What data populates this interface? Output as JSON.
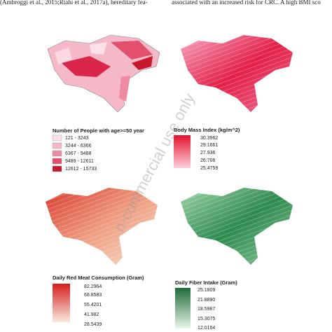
{
  "header": {
    "left": "(Ambroggi et al., 2015;Riahi et al., 2017a), hereditary fea-",
    "right": "associated with an increased risk for CRC. A high BMI sco"
  },
  "watermark": "n-commercial use only",
  "maps": [
    {
      "title": "Number of People with age>=50 year",
      "labels": [
        "121 - 3243",
        "3244 - 6366",
        "6367 - 9488",
        "9489 - 12611",
        "12612 - 15733"
      ]
    },
    {
      "title": "Body Mass Index (kg/m^2)",
      "labels": [
        "30.3962",
        "29.1661",
        "27.936",
        "26.706",
        "25.4759"
      ]
    },
    {
      "title": "Daily Red Meat Consumption (Gram)",
      "labels": [
        "82.2964",
        "68.8583",
        "55.4201",
        "41.982",
        "28.5439"
      ]
    },
    {
      "title": "Daily Fiber Intake (Gram)",
      "labels": [
        "25.1809",
        "21.8890",
        "18.5987",
        "15.3075",
        "12.0164"
      ]
    }
  ]
}
